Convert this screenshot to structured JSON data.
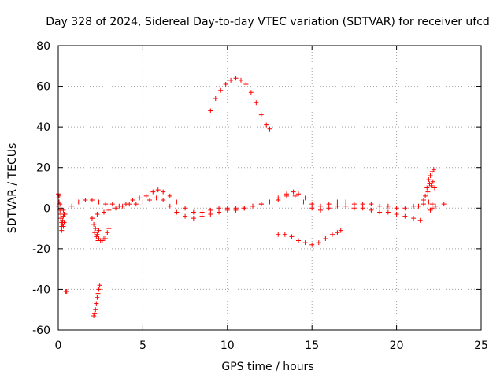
{
  "chart_data": {
    "type": "scatter",
    "title": "Day 328 of 2024, Sidereal Day-to-day VTEC variation (SDTVAR) for receiver ufcd",
    "xlabel": "GPS time / hours",
    "ylabel": "SDTVAR / TECUs",
    "xlim": [
      0,
      25
    ],
    "ylim": [
      -60,
      80
    ],
    "xticks": [
      "0",
      "5",
      "10",
      "15",
      "20",
      "25"
    ],
    "yticks": [
      "-60",
      "-40",
      "-20",
      "0",
      "20",
      "40",
      "60",
      "80"
    ],
    "grid": true,
    "marker": "+",
    "series_color": "#ff0000",
    "series": [
      {
        "name": "main-trace-upper",
        "x": [
          0.0,
          0.3,
          0.8,
          1.2,
          1.6,
          2.0,
          2.4,
          2.8,
          3.2,
          3.6,
          4.0,
          4.4,
          4.8,
          5.2,
          5.6,
          5.9,
          6.2,
          6.6,
          7.0,
          7.5,
          8.0,
          8.5,
          9.0,
          9.5,
          10.0,
          10.5,
          11.0,
          11.5,
          12.0,
          12.5,
          13.0,
          13.5,
          13.9,
          14.2,
          14.6,
          15.0,
          15.5,
          16.0,
          16.5,
          17.0,
          17.5,
          18.0,
          18.5,
          19.0,
          19.5,
          20.0,
          20.5,
          21.0,
          21.3,
          21.6,
          21.9,
          22.1,
          22.3
        ],
        "y": [
          1,
          -1,
          1,
          3,
          4,
          4,
          3,
          2,
          2,
          1,
          2,
          4,
          5,
          6,
          8,
          9,
          8,
          6,
          3,
          0,
          -2,
          -2,
          -1,
          0,
          0,
          0,
          0,
          1,
          2,
          3,
          5,
          7,
          8,
          7,
          5,
          2,
          1,
          2,
          3,
          3,
          2,
          2,
          2,
          1,
          1,
          0,
          0,
          1,
          1,
          2,
          3,
          2,
          1
        ]
      },
      {
        "name": "main-trace-lower",
        "x": [
          2.0,
          2.3,
          2.7,
          3.0,
          3.4,
          3.8,
          4.2,
          4.6,
          5.0,
          5.4,
          5.8,
          6.2,
          6.6,
          7.0,
          7.5,
          8.0,
          8.5,
          9.0,
          9.5,
          10.0,
          10.5,
          11.0,
          11.5,
          12.0,
          12.5,
          13.0,
          13.5,
          14.0,
          14.5,
          15.0,
          15.5,
          16.0,
          16.5,
          17.0,
          17.5,
          18.0,
          18.5,
          19.0,
          19.5,
          20.0,
          20.5,
          21.0,
          21.4
        ],
        "y": [
          -5,
          -3,
          -2,
          -1,
          0,
          1,
          2,
          2,
          3,
          4,
          5,
          4,
          1,
          -2,
          -4,
          -5,
          -4,
          -3,
          -2,
          -1,
          -1,
          0,
          1,
          2,
          3,
          4,
          6,
          6,
          3,
          0,
          -1,
          0,
          1,
          1,
          0,
          0,
          -1,
          -2,
          -2,
          -3,
          -4,
          -5,
          -6
        ]
      },
      {
        "name": "start-cluster",
        "x": [
          0.0,
          0.0,
          0.05,
          0.05,
          0.1,
          0.1,
          0.15,
          0.15,
          0.2,
          0.2,
          0.2,
          0.25,
          0.25,
          0.3,
          0.3,
          0.35,
          0.35,
          0.4
        ],
        "y": [
          7,
          5,
          6,
          3,
          2,
          -1,
          -3,
          -5,
          -7,
          -9,
          -11,
          -8,
          -6,
          -9,
          -4,
          -7,
          -3,
          -3
        ]
      },
      {
        "name": "outlier-left",
        "x": [
          0.45,
          0.5
        ],
        "y": [
          -41,
          -41
        ]
      },
      {
        "name": "drop-cluster",
        "x": [
          2.0,
          2.1,
          2.15,
          2.2,
          2.25,
          2.3,
          2.35,
          2.4,
          2.4,
          2.5,
          2.6,
          2.7,
          2.8,
          2.9,
          3.0
        ],
        "y": [
          -5,
          -8,
          -12,
          -10,
          -14,
          -13,
          -16,
          -11,
          -15,
          -16,
          -16,
          -15,
          -15,
          -12,
          -10
        ]
      },
      {
        "name": "deep-drop",
        "x": [
          2.1,
          2.15,
          2.2,
          2.25,
          2.3,
          2.35,
          2.4,
          2.45
        ],
        "y": [
          -53,
          -52,
          -50,
          -47,
          -44,
          -42,
          -40,
          -38
        ]
      },
      {
        "name": "arc-upper",
        "x": [
          9.0,
          9.3,
          9.6,
          9.9,
          10.2,
          10.5,
          10.8,
          11.1,
          11.4,
          11.7,
          12.0,
          12.3,
          12.5
        ],
        "y": [
          48,
          54,
          58,
          61,
          63,
          64,
          63,
          61,
          57,
          52,
          46,
          41,
          39
        ]
      },
      {
        "name": "arc-lower",
        "x": [
          13.0,
          13.4,
          13.8,
          14.2,
          14.6,
          15.0,
          15.4,
          15.8,
          16.2,
          16.5,
          16.7
        ],
        "y": [
          -13,
          -13,
          -14,
          -16,
          -17,
          -18,
          -17,
          -15,
          -13,
          -12,
          -11
        ]
      },
      {
        "name": "late-spikes",
        "x": [
          21.6,
          21.7,
          21.8,
          21.85,
          21.9,
          21.95,
          22.0,
          22.05,
          22.1,
          22.15,
          22.2,
          22.25,
          22.0,
          22.1
        ],
        "y": [
          4,
          6,
          10,
          8,
          14,
          12,
          16,
          11,
          18,
          13,
          19,
          10,
          -1,
          0
        ]
      },
      {
        "name": "outlier-right",
        "x": [
          22.8
        ],
        "y": [
          2
        ]
      }
    ]
  }
}
